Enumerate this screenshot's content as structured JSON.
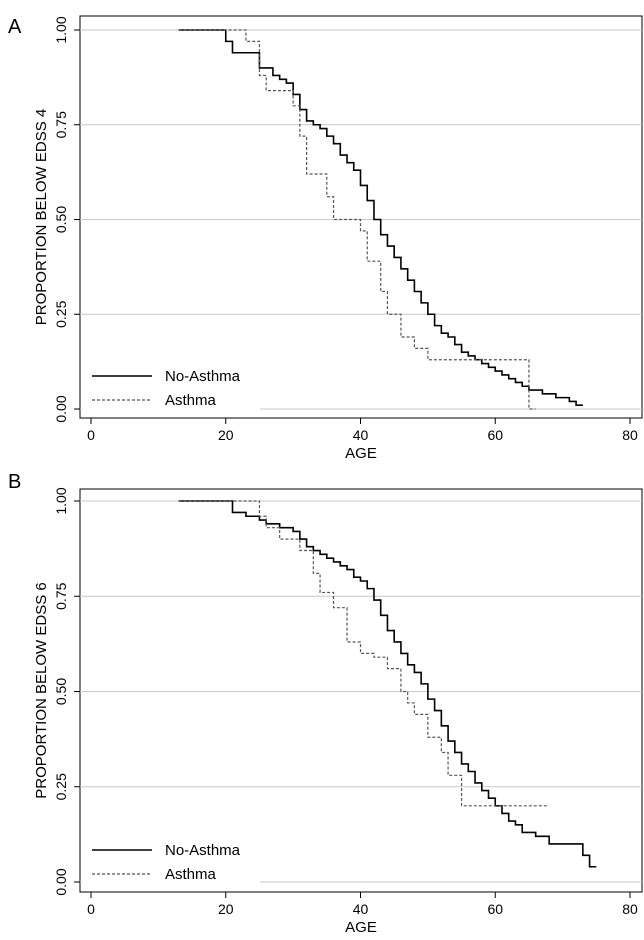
{
  "chart_data": [
    {
      "panel": "A",
      "type": "line",
      "xlabel": "AGE",
      "ylabel": "PROPORTION BELOW EDSS 4",
      "xlim": [
        0,
        80
      ],
      "ylim": [
        0,
        1
      ],
      "xticks": [
        0,
        20,
        40,
        60,
        80
      ],
      "yticks": [
        "0.00",
        "0.25",
        "0.50",
        "0.75",
        "1.00"
      ],
      "grid": "horizontal",
      "legend_position": "bottom-left",
      "series": [
        {
          "name": "No-Asthma",
          "style": "solid",
          "x": [
            13,
            20,
            21,
            25,
            27,
            28,
            29,
            30,
            31,
            32,
            33,
            34,
            35,
            36,
            37,
            38,
            39,
            40,
            41,
            42,
            43,
            44,
            45,
            46,
            47,
            48,
            49,
            50,
            51,
            52,
            53,
            54,
            55,
            56,
            57,
            58,
            59,
            60,
            61,
            62,
            63,
            64,
            65,
            66,
            67,
            68,
            69,
            70,
            71,
            72,
            73
          ],
          "y": [
            1.0,
            0.97,
            0.94,
            0.9,
            0.88,
            0.87,
            0.86,
            0.83,
            0.79,
            0.76,
            0.75,
            0.74,
            0.72,
            0.7,
            0.67,
            0.65,
            0.63,
            0.59,
            0.55,
            0.5,
            0.46,
            0.43,
            0.4,
            0.37,
            0.34,
            0.31,
            0.28,
            0.25,
            0.22,
            0.2,
            0.19,
            0.17,
            0.15,
            0.14,
            0.13,
            0.12,
            0.11,
            0.1,
            0.09,
            0.08,
            0.07,
            0.06,
            0.05,
            0.05,
            0.04,
            0.04,
            0.03,
            0.03,
            0.02,
            0.01,
            0.01
          ]
        },
        {
          "name": "Asthma",
          "style": "dashed",
          "x": [
            13,
            23,
            25,
            26,
            28,
            30,
            31,
            32,
            34,
            35,
            36,
            38,
            40,
            41,
            43,
            44,
            46,
            48,
            50,
            52,
            55,
            60,
            65,
            66
          ],
          "y": [
            1.0,
            0.97,
            0.88,
            0.84,
            0.84,
            0.8,
            0.72,
            0.62,
            0.62,
            0.56,
            0.5,
            0.5,
            0.47,
            0.39,
            0.31,
            0.25,
            0.19,
            0.16,
            0.13,
            0.13,
            0.13,
            0.13,
            0.0,
            0.0
          ]
        }
      ]
    },
    {
      "panel": "B",
      "type": "line",
      "xlabel": "AGE",
      "ylabel": "PROPORTION BELOW EDSS 6",
      "xlim": [
        0,
        80
      ],
      "ylim": [
        0,
        1
      ],
      "xticks": [
        0,
        20,
        40,
        60,
        80
      ],
      "yticks": [
        "0.00",
        "0.25",
        "0.50",
        "0.75",
        "1.00"
      ],
      "grid": "horizontal",
      "legend_position": "bottom-left",
      "series": [
        {
          "name": "No-Asthma",
          "style": "solid",
          "x": [
            13,
            21,
            23,
            25,
            26,
            28,
            30,
            31,
            32,
            33,
            34,
            35,
            36,
            37,
            38,
            39,
            40,
            41,
            42,
            43,
            44,
            45,
            46,
            47,
            48,
            49,
            50,
            51,
            52,
            53,
            54,
            55,
            56,
            57,
            58,
            59,
            60,
            61,
            62,
            63,
            64,
            66,
            68,
            70,
            73,
            74,
            75
          ],
          "y": [
            1.0,
            0.97,
            0.96,
            0.95,
            0.94,
            0.93,
            0.92,
            0.9,
            0.88,
            0.87,
            0.86,
            0.85,
            0.84,
            0.83,
            0.82,
            0.8,
            0.79,
            0.77,
            0.74,
            0.7,
            0.66,
            0.63,
            0.6,
            0.57,
            0.55,
            0.52,
            0.48,
            0.45,
            0.41,
            0.37,
            0.34,
            0.31,
            0.29,
            0.26,
            0.24,
            0.22,
            0.2,
            0.18,
            0.16,
            0.15,
            0.13,
            0.12,
            0.1,
            0.1,
            0.07,
            0.04,
            0.04
          ]
        },
        {
          "name": "Asthma",
          "style": "dashed",
          "x": [
            13,
            25,
            26,
            28,
            31,
            33,
            34,
            36,
            38,
            40,
            42,
            44,
            46,
            47,
            48,
            50,
            52,
            53,
            55,
            58,
            62,
            68
          ],
          "y": [
            1.0,
            0.96,
            0.93,
            0.9,
            0.87,
            0.81,
            0.76,
            0.72,
            0.63,
            0.6,
            0.59,
            0.56,
            0.5,
            0.47,
            0.44,
            0.38,
            0.34,
            0.28,
            0.2,
            0.2,
            0.2,
            0.2
          ]
        }
      ]
    }
  ]
}
